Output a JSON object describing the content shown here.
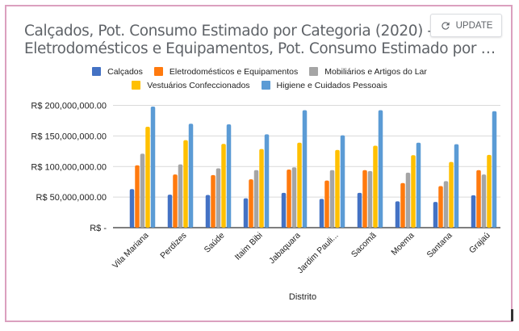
{
  "header": {
    "title_line1": "Calçados, Pot. Consumo Estimado por Categoria (2020) -",
    "title_line2": "Eletrodomésticos e Equipamentos, Pot. Consumo Estimado por Cat...",
    "update_label": "UPDATE",
    "update_icon": "refresh-icon"
  },
  "colors": {
    "frame_border": "#dba0bf",
    "grid": "#d9d9d9",
    "axis": "#333333"
  },
  "chart_data": {
    "type": "bar",
    "title": "Calçados, Pot. Consumo Estimado por Categoria (2020) - Eletrodomésticos e Equipamentos, Pot. Consumo Estimado por Cat...",
    "xlabel": "Distrito",
    "ylabel": "",
    "ylim": [
      0,
      200000000
    ],
    "yticks": [
      0,
      50000000,
      100000000,
      150000000,
      200000000
    ],
    "ytick_labels": [
      "R$  -",
      "R$  50,000,000.00",
      "R$  100,000,000.00",
      "R$  150,000,000.00",
      "R$  200,000,000.00"
    ],
    "grid": true,
    "legend_position": "top",
    "categories": [
      "Vila Mariana",
      "Perdizes",
      "Saúde",
      "Itaim Bibi",
      "Jabaquara",
      "Jardim Pauli...",
      "Sacomã",
      "Moema",
      "Santana",
      "Grajaú"
    ],
    "series": [
      {
        "name": "Calçados",
        "color": "#4472c4",
        "values": [
          63000000,
          54000000,
          53500000,
          48000000,
          57000000,
          47000000,
          57000000,
          43000000,
          42000000,
          53000000
        ]
      },
      {
        "name": "Eletrodomésticos e Equipamentos",
        "color": "#ff7a0e",
        "values": [
          102000000,
          87000000,
          86000000,
          79000000,
          95000000,
          77000000,
          94000000,
          73000000,
          68000000,
          94000000
        ]
      },
      {
        "name": "Mobiliários e Artigos do Lar",
        "color": "#a5a5a5",
        "values": [
          121000000,
          103500000,
          97000000,
          94000000,
          98700000,
          94000000,
          92500000,
          90000000,
          76000000,
          87000000
        ]
      },
      {
        "name": "Vestuários Confeccionados",
        "color": "#ffc000",
        "values": [
          165000000,
          143000000,
          137000000,
          128500000,
          139000000,
          127000000,
          134000000,
          118400000,
          107500000,
          119000000
        ]
      },
      {
        "name": "Higiene e Cuidados Pessoais",
        "color": "#5b9bd5",
        "values": [
          198000000,
          170000000,
          169000000,
          152600000,
          192000000,
          151000000,
          192000000,
          139000000,
          136400000,
          190400000
        ]
      }
    ]
  },
  "legend": {
    "row1": [
      0,
      1,
      2
    ],
    "row2": [
      3,
      4
    ]
  }
}
